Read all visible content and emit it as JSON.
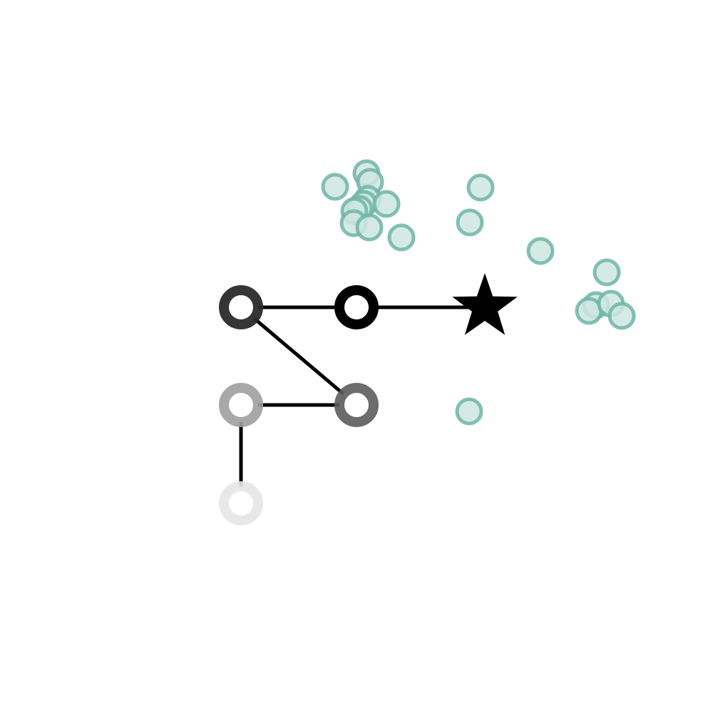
{
  "colors": {
    "background": "#ffffff",
    "path": "#000000",
    "cluster_fill": "#cfe6e1",
    "cluster_stroke": "#6fb5a8",
    "node_hole": "#ffffff"
  },
  "path_nodes": [
    {
      "id": "node-0",
      "shade": "#e6e6e6",
      "opacity": 0.9
    },
    {
      "id": "node-1",
      "shade": "#9e9e9e",
      "opacity": 0.9
    },
    {
      "id": "node-2",
      "shade": "#5c5c5c",
      "opacity": 0.9
    },
    {
      "id": "node-3",
      "shade": "#2a2a2a",
      "opacity": 0.95
    },
    {
      "id": "node-4",
      "shade": "#000000",
      "opacity": 1.0
    }
  ],
  "path_order": [
    "node-0",
    "node-1",
    "node-2",
    "node-3",
    "node-4",
    "goal"
  ],
  "goal_icon": "star-icon"
}
